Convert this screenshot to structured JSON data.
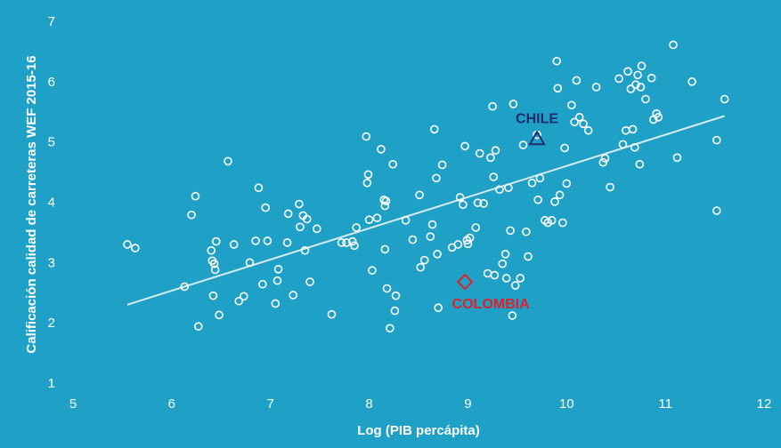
{
  "chart_data": {
    "type": "scatter",
    "xlabel": "Log (PIB percápita)",
    "ylabel": "Calificación   calidad de carreteras WEF 2015-16",
    "xlim": [
      5,
      12
    ],
    "ylim": [
      1,
      7
    ],
    "xticks": [
      "5",
      "6",
      "7",
      "8",
      "9",
      "10",
      "11",
      "12"
    ],
    "yticks": [
      "1",
      "2",
      "3",
      "4",
      "5",
      "6",
      "7"
    ],
    "grid": false,
    "colors": {
      "background": "#1fa0c6",
      "points": "#ffffff",
      "chile": "#1f2d6e",
      "colombia": "#e0202a"
    },
    "trendline": {
      "x": [
        5.55,
        11.6
      ],
      "y": [
        2.3,
        5.43
      ]
    },
    "highlights": [
      {
        "label": "CHILE",
        "x": 9.7,
        "y": 5.05,
        "marker": "triangle"
      },
      {
        "label": "COLOMBIA",
        "x": 8.97,
        "y": 2.68,
        "marker": "diamond"
      }
    ],
    "points": [
      [
        5.55,
        3.3
      ],
      [
        5.63,
        3.24
      ],
      [
        6.13,
        2.6
      ],
      [
        6.2,
        3.79
      ],
      [
        6.24,
        4.1
      ],
      [
        6.27,
        1.94
      ],
      [
        6.4,
        3.2
      ],
      [
        6.41,
        3.03
      ],
      [
        6.42,
        2.45
      ],
      [
        6.43,
        2.98
      ],
      [
        6.44,
        2.88
      ],
      [
        6.45,
        3.35
      ],
      [
        6.48,
        2.13
      ],
      [
        6.57,
        4.68
      ],
      [
        6.63,
        3.3
      ],
      [
        6.68,
        2.36
      ],
      [
        6.73,
        2.44
      ],
      [
        6.79,
        3.0
      ],
      [
        6.85,
        3.36
      ],
      [
        6.88,
        4.24
      ],
      [
        6.92,
        2.64
      ],
      [
        6.95,
        3.91
      ],
      [
        6.97,
        3.36
      ],
      [
        7.05,
        2.32
      ],
      [
        7.07,
        2.7
      ],
      [
        7.08,
        2.89
      ],
      [
        7.17,
        3.33
      ],
      [
        7.18,
        3.81
      ],
      [
        7.23,
        2.46
      ],
      [
        7.29,
        3.97
      ],
      [
        7.3,
        3.59
      ],
      [
        7.33,
        3.78
      ],
      [
        7.35,
        3.2
      ],
      [
        7.37,
        3.72
      ],
      [
        7.4,
        2.68
      ],
      [
        7.47,
        3.56
      ],
      [
        7.62,
        2.14
      ],
      [
        7.72,
        3.33
      ],
      [
        7.77,
        3.33
      ],
      [
        7.83,
        3.35
      ],
      [
        7.85,
        3.28
      ],
      [
        7.87,
        3.58
      ],
      [
        7.97,
        5.09
      ],
      [
        7.98,
        4.32
      ],
      [
        7.99,
        4.46
      ],
      [
        8.0,
        3.71
      ],
      [
        8.03,
        2.87
      ],
      [
        8.08,
        3.74
      ],
      [
        8.12,
        4.88
      ],
      [
        8.15,
        4.04
      ],
      [
        8.16,
        3.94
      ],
      [
        8.17,
        4.02
      ],
      [
        8.18,
        2.57
      ],
      [
        8.16,
        3.22
      ],
      [
        8.21,
        1.91
      ],
      [
        8.24,
        4.63
      ],
      [
        8.26,
        2.2
      ],
      [
        8.27,
        2.45
      ],
      [
        8.37,
        3.7
      ],
      [
        8.44,
        3.38
      ],
      [
        8.51,
        4.12
      ],
      [
        8.52,
        2.92
      ],
      [
        8.56,
        3.04
      ],
      [
        8.62,
        3.43
      ],
      [
        8.64,
        3.63
      ],
      [
        8.66,
        5.21
      ],
      [
        8.68,
        4.4
      ],
      [
        8.69,
        3.14
      ],
      [
        8.7,
        2.25
      ],
      [
        8.74,
        4.62
      ],
      [
        8.84,
        3.25
      ],
      [
        8.9,
        3.3
      ],
      [
        8.92,
        4.08
      ],
      [
        8.95,
        3.96
      ],
      [
        8.97,
        4.93
      ],
      [
        8.99,
        3.37
      ],
      [
        9.0,
        3.31
      ],
      [
        9.02,
        3.41
      ],
      [
        9.08,
        3.58
      ],
      [
        9.1,
        3.99
      ],
      [
        9.12,
        4.81
      ],
      [
        9.16,
        3.98
      ],
      [
        9.2,
        2.82
      ],
      [
        9.23,
        4.74
      ],
      [
        9.25,
        5.59
      ],
      [
        9.26,
        4.42
      ],
      [
        9.27,
        2.79
      ],
      [
        9.28,
        4.86
      ],
      [
        9.32,
        4.21
      ],
      [
        9.35,
        2.98
      ],
      [
        9.38,
        3.14
      ],
      [
        9.39,
        2.74
      ],
      [
        9.41,
        4.24
      ],
      [
        9.43,
        3.53
      ],
      [
        9.45,
        2.12
      ],
      [
        9.46,
        5.63
      ],
      [
        9.48,
        2.62
      ],
      [
        9.53,
        2.74
      ],
      [
        9.56,
        4.95
      ],
      [
        9.59,
        3.51
      ],
      [
        9.61,
        3.1
      ],
      [
        9.65,
        4.32
      ],
      [
        9.7,
        5.12
      ],
      [
        9.71,
        4.04
      ],
      [
        9.73,
        4.4
      ],
      [
        9.78,
        3.7
      ],
      [
        9.81,
        3.66
      ],
      [
        9.85,
        3.7
      ],
      [
        9.88,
        4.01
      ],
      [
        9.9,
        6.34
      ],
      [
        9.91,
        5.89
      ],
      [
        9.93,
        4.12
      ],
      [
        9.96,
        3.66
      ],
      [
        9.98,
        4.9
      ],
      [
        10.0,
        4.31
      ],
      [
        10.05,
        5.61
      ],
      [
        10.08,
        5.33
      ],
      [
        10.1,
        6.02
      ],
      [
        10.13,
        5.41
      ],
      [
        10.17,
        5.3
      ],
      [
        10.22,
        5.19
      ],
      [
        10.3,
        5.91
      ],
      [
        10.37,
        4.66
      ],
      [
        10.39,
        4.73
      ],
      [
        10.44,
        4.25
      ],
      [
        10.53,
        6.05
      ],
      [
        10.57,
        4.96
      ],
      [
        10.6,
        5.19
      ],
      [
        10.62,
        6.17
      ],
      [
        10.65,
        5.88
      ],
      [
        10.67,
        5.21
      ],
      [
        10.69,
        4.91
      ],
      [
        10.7,
        5.95
      ],
      [
        10.72,
        6.11
      ],
      [
        10.74,
        4.63
      ],
      [
        10.75,
        5.91
      ],
      [
        10.76,
        6.26
      ],
      [
        10.8,
        5.71
      ],
      [
        10.86,
        6.06
      ],
      [
        10.88,
        5.37
      ],
      [
        10.91,
        5.47
      ],
      [
        10.93,
        5.41
      ],
      [
        11.08,
        6.61
      ],
      [
        11.12,
        4.74
      ],
      [
        11.27,
        6.0
      ],
      [
        11.52,
        5.03
      ],
      [
        11.52,
        3.86
      ],
      [
        11.6,
        5.71
      ]
    ]
  }
}
